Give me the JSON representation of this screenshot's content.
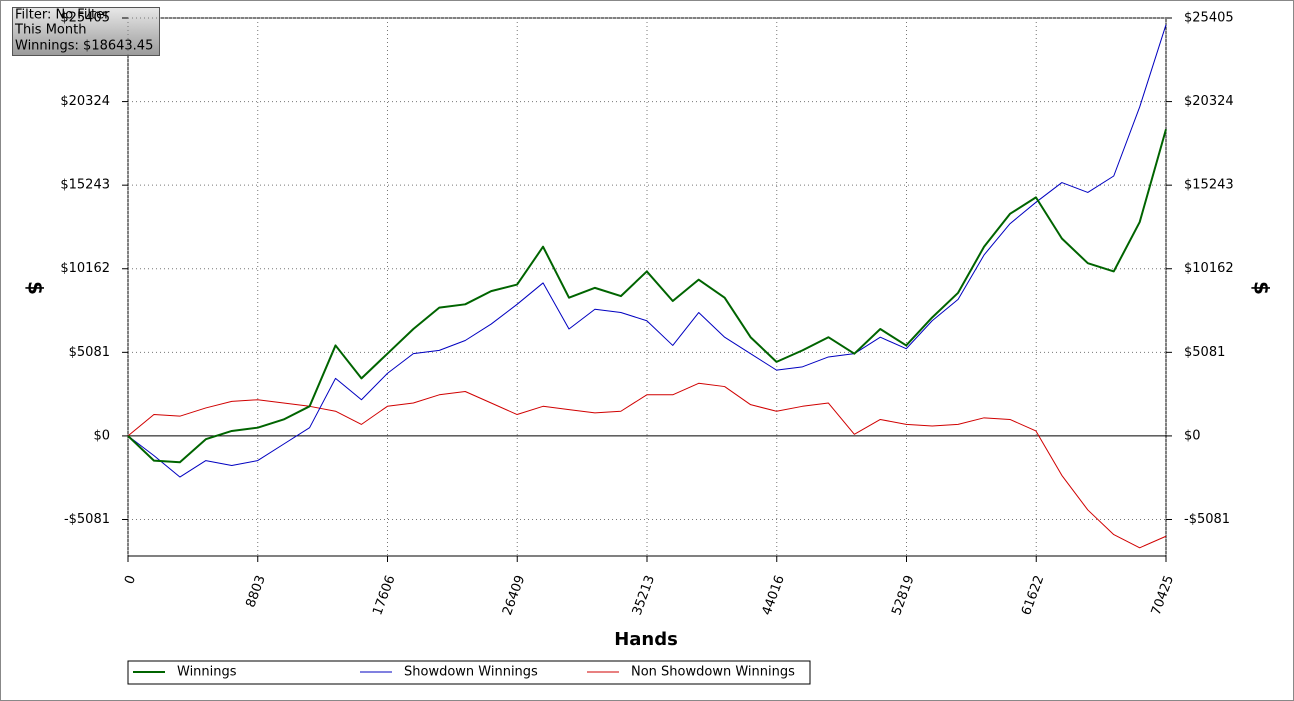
{
  "chart_data": {
    "type": "line",
    "info": [
      "Filter: No Filter",
      "This Month",
      "Winnings: $18643.45"
    ],
    "xlabel": "Hands",
    "ylabel": "$",
    "x": [
      0,
      1760,
      3520,
      5280,
      7040,
      8800,
      10560,
      12320,
      14080,
      15840,
      17600,
      19360,
      21120,
      22880,
      24640,
      26400,
      28160,
      29920,
      31680,
      33440,
      35200,
      36960,
      38720,
      40480,
      42240,
      44000,
      45760,
      47520,
      49280,
      51040,
      52800,
      54560,
      56320,
      58080,
      59840,
      61600,
      63360,
      65120,
      66880,
      68640,
      70425
    ],
    "series": [
      {
        "name": "Winnings",
        "color": "#006400",
        "width": 2,
        "values": [
          0,
          -1500,
          -1600,
          -200,
          300,
          500,
          1000,
          1800,
          5500,
          3500,
          5000,
          6500,
          7800,
          8000,
          8800,
          9200,
          11500,
          8400,
          9000,
          8500,
          10000,
          8200,
          9500,
          8400,
          6000,
          4500,
          5200,
          6000,
          5000,
          6500,
          5500,
          7200,
          8700,
          11500,
          13500,
          14500,
          12000,
          10500,
          10000,
          13000,
          18643
        ]
      },
      {
        "name": "Showdown Winnings",
        "color": "#0000c0",
        "width": 1,
        "values": [
          0,
          -1200,
          -2500,
          -1500,
          -1800,
          -1500,
          -500,
          500,
          3500,
          2200,
          3800,
          5000,
          5200,
          5800,
          6800,
          8000,
          9300,
          6500,
          7700,
          7500,
          7000,
          5500,
          7500,
          6000,
          5000,
          4000,
          4200,
          4800,
          5000,
          6000,
          5300,
          7000,
          8300,
          11000,
          12900,
          14200,
          15400,
          14800,
          15800,
          20000,
          25000
        ]
      },
      {
        "name": "Non Showdown Winnings",
        "color": "#d00000",
        "width": 1,
        "values": [
          0,
          1300,
          1200,
          1700,
          2100,
          2200,
          2000,
          1800,
          1500,
          700,
          1800,
          2000,
          2500,
          2700,
          2000,
          1300,
          1800,
          1600,
          1400,
          1500,
          2500,
          2500,
          3200,
          3000,
          1900,
          1500,
          1800,
          2000,
          100,
          1000,
          700,
          600,
          700,
          1100,
          1000,
          300,
          -2400,
          -4500,
          -6000,
          -6800,
          -6100
        ]
      }
    ],
    "xlim": [
      0,
      70425
    ],
    "xticks": [
      0,
      8803,
      17606,
      26409,
      35213,
      44016,
      52819,
      61622,
      70425
    ],
    "ylim": [
      -7300,
      25405
    ],
    "yticks": [
      {
        "value": -5081,
        "label": "-$5081"
      },
      {
        "value": 0,
        "label": "$0"
      },
      {
        "value": 5081,
        "label": "$5081"
      },
      {
        "value": 10162,
        "label": "$10162"
      },
      {
        "value": 15243,
        "label": "$15243"
      },
      {
        "value": 20324,
        "label": "$20324"
      },
      {
        "value": 25405,
        "label": "$25405"
      }
    ],
    "grid": true,
    "legend": "bottom"
  }
}
